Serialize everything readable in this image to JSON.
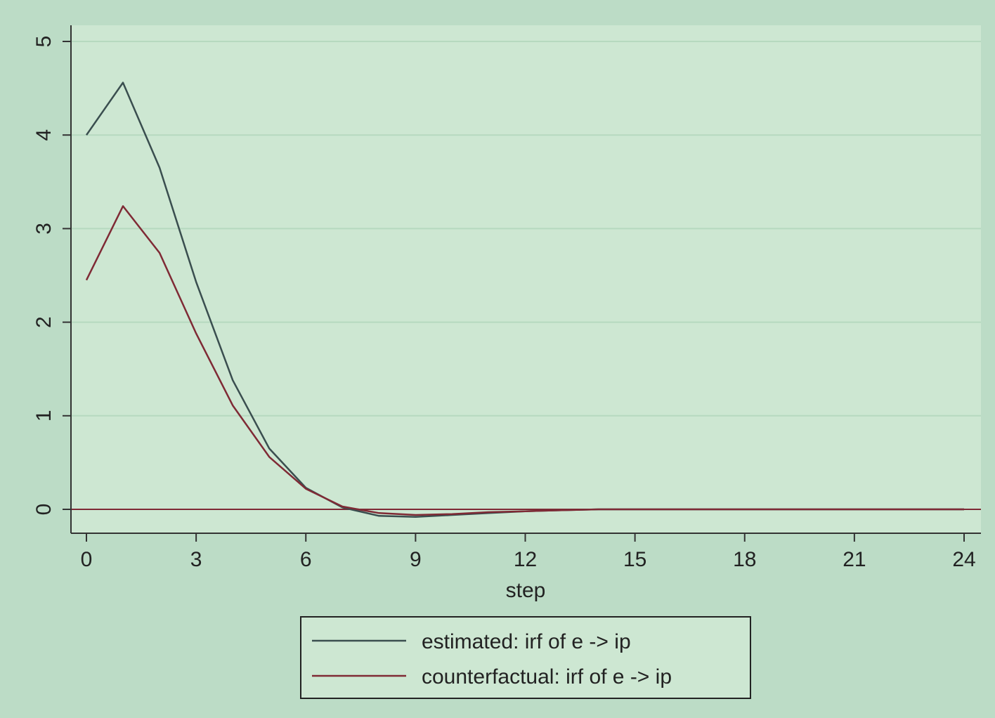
{
  "colors": {
    "page_background": "#bcdcc6",
    "plot_background": "#cde7d2",
    "grid": "#b6d9bf",
    "axis": "#333333",
    "estimated": "#3a4e4f",
    "counterfactual": "#7f2a35"
  },
  "chart_data": {
    "type": "line",
    "title": "",
    "xlabel": "step",
    "ylabel": "",
    "xlim": [
      0,
      24
    ],
    "ylim": [
      0,
      5
    ],
    "x_ticks": [
      0,
      3,
      6,
      9,
      12,
      15,
      18,
      21,
      24
    ],
    "y_ticks": [
      0,
      1,
      2,
      3,
      4,
      5
    ],
    "grid": "horizontal",
    "legend_position": "bottom",
    "reference_line": {
      "y": 0,
      "color": "#7f2a35"
    },
    "x": [
      0,
      1,
      2,
      3,
      4,
      5,
      6,
      7,
      8,
      9,
      10,
      11,
      12,
      13,
      14,
      15,
      16,
      17,
      18,
      19,
      20,
      21,
      22,
      23,
      24
    ],
    "series": [
      {
        "name": "estimated: irf of e -> ip",
        "color": "#3a4e4f",
        "values": [
          4.0,
          4.56,
          3.65,
          2.43,
          1.38,
          0.65,
          0.23,
          0.02,
          -0.07,
          -0.08,
          -0.06,
          -0.04,
          -0.02,
          -0.01,
          0.0,
          0.0,
          0.0,
          0.0,
          0.0,
          0.0,
          0.0,
          0.0,
          0.0,
          0.0,
          0.0
        ]
      },
      {
        "name": "counterfactual: irf of e -> ip",
        "color": "#7f2a35",
        "values": [
          2.45,
          3.24,
          2.74,
          1.88,
          1.11,
          0.56,
          0.22,
          0.03,
          -0.04,
          -0.06,
          -0.05,
          -0.03,
          -0.02,
          -0.01,
          0.0,
          0.0,
          0.0,
          0.0,
          0.0,
          0.0,
          0.0,
          0.0,
          0.0,
          0.0,
          0.0
        ]
      }
    ]
  }
}
